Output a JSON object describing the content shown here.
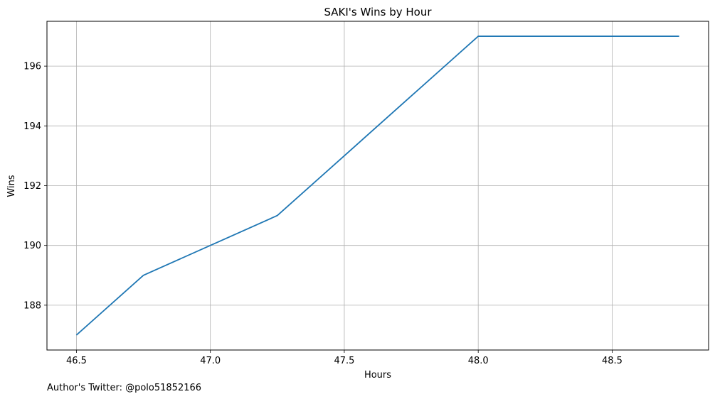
{
  "chart_data": {
    "type": "line",
    "title": "SAKI's Wins by Hour",
    "xlabel": "Hours",
    "ylabel": "Wins",
    "xlim": [
      46.39,
      48.86
    ],
    "ylim": [
      186.5,
      197.5
    ],
    "xticks": [
      46.5,
      47.0,
      47.5,
      48.0,
      48.5
    ],
    "xtick_labels": [
      "46.5",
      "47.0",
      "47.5",
      "48.0",
      "48.5"
    ],
    "yticks": [
      188,
      190,
      192,
      194,
      196
    ],
    "ytick_labels": [
      "188",
      "190",
      "192",
      "194",
      "196"
    ],
    "grid": true,
    "series": [
      {
        "color": "#1f77b4",
        "x": [
          46.5,
          46.75,
          47.0,
          47.25,
          47.5,
          47.75,
          48.0,
          48.25,
          48.5,
          48.75
        ],
        "y": [
          187,
          189,
          190,
          191,
          193,
          195,
          197,
          197,
          197,
          197
        ]
      }
    ]
  },
  "footnote": "Author's Twitter: @polo51852166"
}
